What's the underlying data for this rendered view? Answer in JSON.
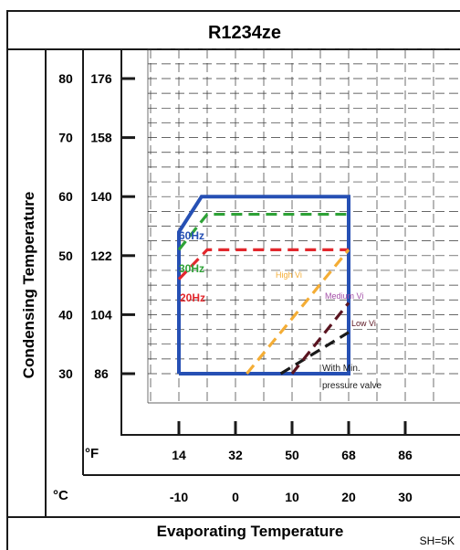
{
  "chart_data": {
    "type": "line",
    "title": "R1234ze",
    "xlabel": "Evaporating Temperature",
    "ylabel": "Condensing Temperature",
    "note": "SH=5K",
    "x_unit_label_f": "°F",
    "x_unit_label_c": "°C",
    "x_ticks_f": [
      "14",
      "32",
      "50",
      "68",
      "86"
    ],
    "x_ticks_c": [
      "-10",
      "0",
      "10",
      "20",
      "30"
    ],
    "y_ticks_c": [
      "80",
      "70",
      "60",
      "50",
      "40",
      "30"
    ],
    "y_ticks_f": [
      "176",
      "158",
      "140",
      "122",
      "104",
      "86"
    ],
    "xlim": [
      -15,
      35
    ],
    "ylim": [
      25,
      85
    ],
    "grid": true,
    "series": [
      {
        "name": "60Hz",
        "color": "#2650b4",
        "style": "solid",
        "x": [
          -10,
          -10,
          -6,
          20,
          20,
          -10
        ],
        "y": [
          30,
          54,
          60,
          60,
          30,
          30
        ]
      },
      {
        "name": "30Hz",
        "color": "#2ea236",
        "style": "dashed",
        "x": [
          -10,
          -5,
          20
        ],
        "y": [
          51,
          57,
          57
        ]
      },
      {
        "name": "20Hz",
        "color": "#e2282d",
        "style": "dashed",
        "x": [
          -10,
          -5,
          20
        ],
        "y": [
          46,
          51,
          51
        ]
      },
      {
        "name": "High Vi",
        "color": "#f4ad35",
        "style": "dashed",
        "x": [
          2,
          20
        ],
        "y": [
          30,
          51
        ]
      },
      {
        "name": "Medium Vi",
        "color": "#1a1a1a",
        "style": "dashed",
        "x": [
          8,
          20
        ],
        "y": [
          30,
          37
        ]
      },
      {
        "name": "Low Vi",
        "color": "#5a1420",
        "style": "dashed",
        "x": [
          10,
          20
        ],
        "y": [
          30,
          42
        ]
      }
    ],
    "annotations": [
      {
        "id": "60hz",
        "text": "60Hz",
        "color": "#2650b4"
      },
      {
        "id": "30hz",
        "text": "30Hz",
        "color": "#2ea236"
      },
      {
        "id": "20hz",
        "text": "20Hz",
        "color": "#e2282d"
      },
      {
        "id": "highvi",
        "text": "High Vi",
        "color": "#f4ad35"
      },
      {
        "id": "medvi",
        "text": "Medium Vi",
        "color": "#a44fa8"
      },
      {
        "id": "lowvi",
        "text": "Low Vi",
        "color": "#5a1420"
      },
      {
        "id": "minpv1",
        "text": "With  Min.",
        "color": "#1a1a1a"
      },
      {
        "id": "minpv2",
        "text": "pressure  valve",
        "color": "#1a1a1a"
      }
    ]
  }
}
